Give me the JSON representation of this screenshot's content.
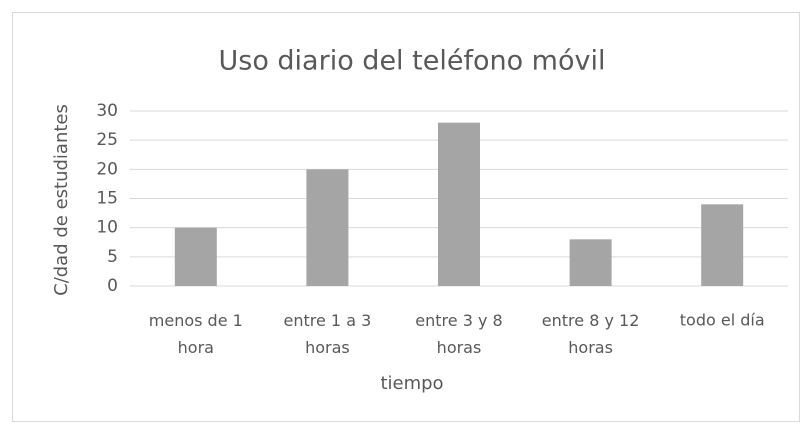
{
  "chart_data": {
    "type": "bar",
    "title": "Uso diario del teléfono móvil",
    "x_label": "tiempo",
    "y_label": "C/dad de estudiantes",
    "categories": [
      "menos de 1 hora",
      "entre 1 a 3 horas",
      "entre 3 y 8 horas",
      "entre 8 y 12 horas",
      "todo el día"
    ],
    "values": [
      10,
      20,
      28,
      8,
      14
    ],
    "color": "#a5a5a5",
    "ylim": [
      0,
      30
    ],
    "yticks": [
      0,
      5,
      10,
      15,
      20,
      25,
      30
    ],
    "grid": true
  }
}
